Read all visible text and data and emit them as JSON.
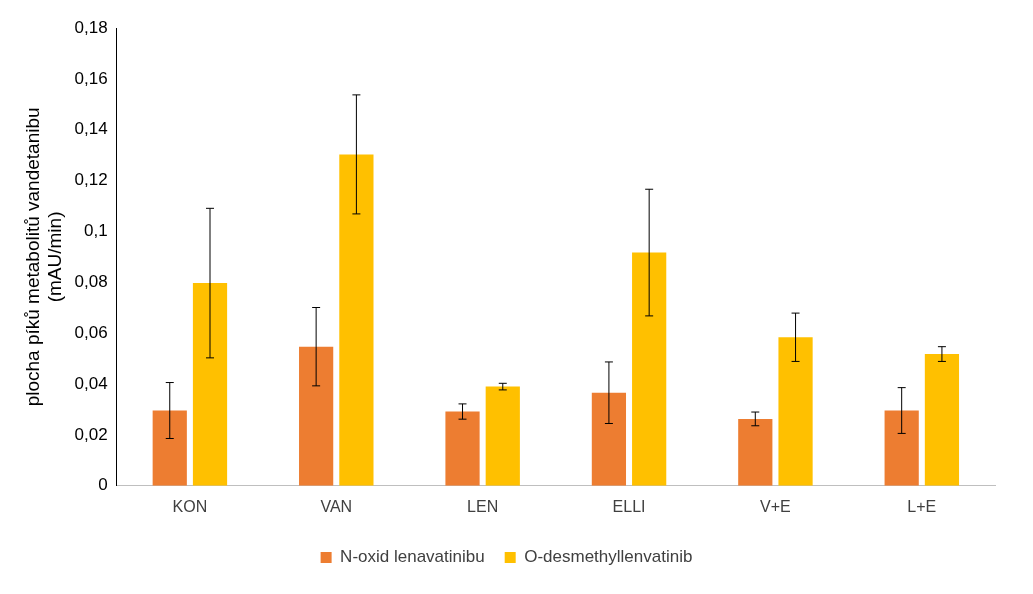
{
  "chart_data": {
    "type": "bar",
    "ylabel": "plocha píků metabolitů vandetanibu (mAU/min)",
    "categories": [
      "KON",
      "VAN",
      "LEN",
      "ELLI",
      "V+E",
      "L+E"
    ],
    "series": [
      {
        "name": "N-oxid lenavatinibu",
        "color": "#ed7d31",
        "values": [
          0.0296,
          0.0547,
          0.0292,
          0.0366,
          0.0263,
          0.0296
        ],
        "errors": [
          0.011,
          0.0154,
          0.003,
          0.0121,
          0.0027,
          0.009
        ]
      },
      {
        "name": "O-desmethyllenvatinib",
        "color": "#ffc000",
        "values": [
          0.0797,
          0.1303,
          0.039,
          0.0917,
          0.0584,
          0.0518
        ],
        "errors": [
          0.0294,
          0.0234,
          0.0013,
          0.0249,
          0.0095,
          0.0029
        ]
      }
    ],
    "ylim": [
      0,
      0.18
    ],
    "yticks": [
      {
        "value": 0,
        "label": "0"
      },
      {
        "value": 0.02,
        "label": "0,02"
      },
      {
        "value": 0.04,
        "label": "0,04"
      },
      {
        "value": 0.06,
        "label": "0,06"
      },
      {
        "value": 0.08,
        "label": "0,08"
      },
      {
        "value": 0.1,
        "label": "0,1"
      },
      {
        "value": 0.12,
        "label": "0,12"
      },
      {
        "value": 0.14,
        "label": "0,14"
      },
      {
        "value": 0.16,
        "label": "0,16"
      },
      {
        "value": 0.18,
        "label": "0,18"
      }
    ],
    "grid": false,
    "legend": "bottom"
  }
}
